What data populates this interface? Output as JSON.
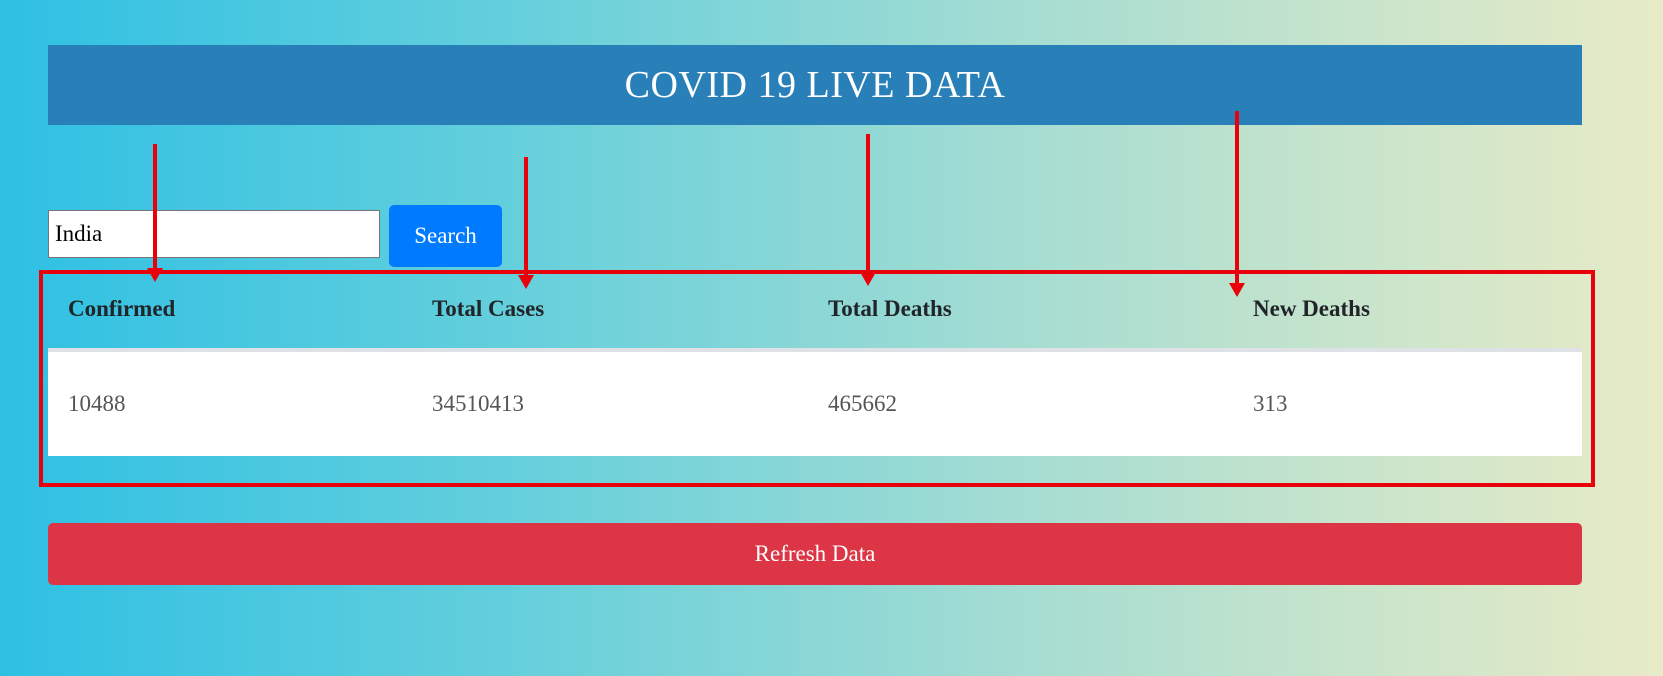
{
  "header": {
    "title": "COVID 19 LIVE DATA",
    "background_color": "#2980b9"
  },
  "search": {
    "value": "India",
    "button_label": "Search",
    "button_color": "#007bff"
  },
  "table": {
    "headers": [
      "Confirmed",
      "Total Cases",
      "Total Deaths",
      "New Deaths"
    ],
    "rows": [
      [
        "10488",
        "34510413",
        "465662",
        "313"
      ]
    ]
  },
  "refresh": {
    "label": "Refresh Data",
    "color": "#dc3545"
  },
  "annotation": {
    "color": "#e8000b",
    "arrow_count": 4
  }
}
